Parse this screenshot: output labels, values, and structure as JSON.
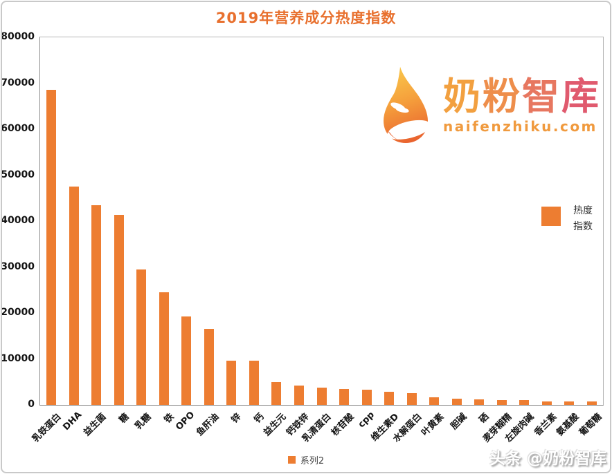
{
  "title": "2019年营养成分热度指数",
  "colors": {
    "bar": "#ED7D31",
    "title": "#E8702E",
    "axis": "#8C8C8C",
    "plot_border": "#B5B5B5",
    "logo_domain": "#F09A3E",
    "logo_char_colors": [
      "#F2A040",
      "#EE8E4B",
      "#E77760",
      "#E05A6E"
    ],
    "drop_gradient": [
      "#F9C64B",
      "#F5A03C",
      "#E9622E"
    ]
  },
  "logo": {
    "name": "奶粉智库",
    "domain": "naifenzhiku.com"
  },
  "right_legend": {
    "lines": [
      "热度",
      "指数"
    ]
  },
  "bottom_legend": {
    "label": "系列2"
  },
  "watermark": "头条 @奶粉智库",
  "y_axis": {
    "ticks_top_to_bottom": [
      "80000",
      "70000",
      "60000",
      "50000",
      "40000",
      "30000",
      "20000",
      "10000",
      "0"
    ]
  },
  "chart_data": {
    "type": "bar",
    "title": "2019年营养成分热度指数",
    "series_name": "系列2",
    "legend_label": "热度指数",
    "legend_position": "right",
    "grid": false,
    "ylim": [
      0,
      80000
    ],
    "ytick_step": 10000,
    "bar_color": "#ED7D31",
    "categories": [
      "乳铁蛋白",
      "DHA",
      "益生菌",
      "糖",
      "乳糖",
      "铁",
      "OPO",
      "鱼肝油",
      "锌",
      "钙",
      "益生元",
      "钙铁锌",
      "乳清蛋白",
      "核苷酸",
      "cpp",
      "维生素D",
      "水解蛋白",
      "叶黄素",
      "胆碱",
      "硒",
      "麦芽糊精",
      "左旋肉碱",
      "香兰素",
      "氨基酸",
      "葡萄糖"
    ],
    "values": [
      68500,
      47500,
      43500,
      41400,
      29500,
      24500,
      19300,
      16600,
      9600,
      9600,
      5000,
      4200,
      3700,
      3500,
      3300,
      2800,
      2500,
      1600,
      1300,
      1200,
      1000,
      1100,
      700,
      700,
      800
    ]
  }
}
